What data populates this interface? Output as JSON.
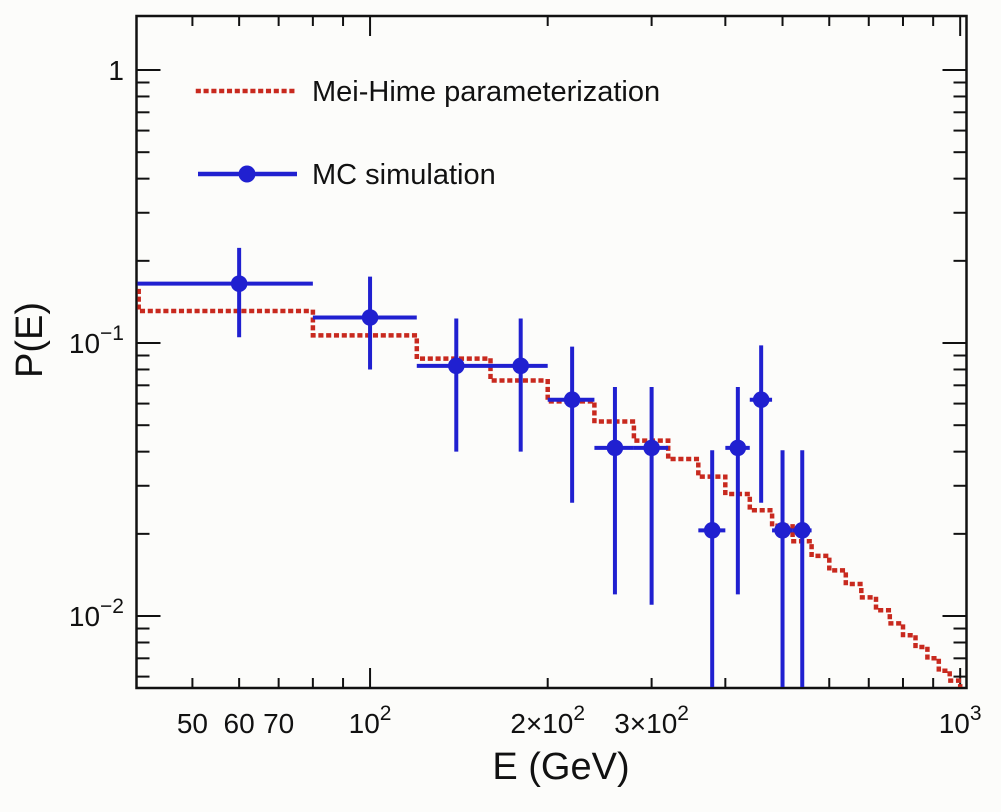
{
  "colors": {
    "background": "#fcfcfa",
    "frame": "#111111",
    "red": "#c8291e",
    "blue": "#2020d0"
  },
  "chart_data": {
    "type": "line",
    "title": "",
    "xlabel": "E (GeV)",
    "ylabel": "P(E)",
    "x_scale": "log",
    "y_scale": "log",
    "x_range": [
      40.2,
      1025
    ],
    "y_range": [
      0.00545,
      1.577
    ],
    "grid": false,
    "x_ticks": [
      {
        "value": 50,
        "label": "50"
      },
      {
        "value": 60,
        "label": "60"
      },
      {
        "value": 70,
        "label": "70"
      },
      {
        "value": 80
      },
      {
        "value": 90
      },
      {
        "value": 100,
        "label": "10",
        "sup": "2",
        "major": true
      },
      {
        "value": 200,
        "label": "2×10",
        "sup": "2"
      },
      {
        "value": 300,
        "label": "3×10",
        "sup": "2"
      },
      {
        "value": 400
      },
      {
        "value": 500
      },
      {
        "value": 600
      },
      {
        "value": 700
      },
      {
        "value": 800
      },
      {
        "value": 900
      },
      {
        "value": 1000,
        "label": "10",
        "sup": "3",
        "major": true
      }
    ],
    "y_ticks": [
      {
        "value": 1,
        "label": "1",
        "major": true
      },
      {
        "value": 0.9
      },
      {
        "value": 0.8
      },
      {
        "value": 0.7
      },
      {
        "value": 0.6
      },
      {
        "value": 0.5
      },
      {
        "value": 0.4
      },
      {
        "value": 0.3
      },
      {
        "value": 0.2
      },
      {
        "value": 0.1,
        "label": "10",
        "sup": "−1",
        "major": true
      },
      {
        "value": 0.09
      },
      {
        "value": 0.08
      },
      {
        "value": 0.07
      },
      {
        "value": 0.06
      },
      {
        "value": 0.05
      },
      {
        "value": 0.04
      },
      {
        "value": 0.03
      },
      {
        "value": 0.02
      },
      {
        "value": 0.01,
        "label": "10",
        "sup": "−2",
        "major": true
      },
      {
        "value": 0.009
      },
      {
        "value": 0.008
      },
      {
        "value": 0.007
      },
      {
        "value": 0.006
      }
    ],
    "series": [
      {
        "name": "Mei-Hime parameterization",
        "type": "step_histogram",
        "color": "#c8291e",
        "line_style": "dotted",
        "bin_edges_start": 40,
        "bin_width": 40,
        "left_edge_stub_value": 0.155,
        "values": [
          0.131,
          0.1066,
          0.0877,
          0.0729,
          0.0611,
          0.0516,
          0.0439,
          0.0376,
          0.0324,
          0.028,
          0.0244,
          0.0214,
          0.0188,
          0.0166,
          0.0147,
          0.0131,
          0.0117,
          0.0105,
          0.0094,
          0.0085,
          0.0077,
          0.007,
          0.0063,
          0.0058,
          0.0053
        ]
      },
      {
        "name": "MC simulation",
        "type": "scatter_errorbars",
        "color": "#2020d0",
        "marker": "filled-circle",
        "points": [
          {
            "E": 60,
            "P": 0.165,
            "P_lo": 0.105,
            "P_hi": 0.223,
            "E_lo": 40,
            "E_hi": 80
          },
          {
            "E": 100,
            "P": 0.124,
            "P_lo": 0.08,
            "P_hi": 0.175,
            "E_lo": 80,
            "E_hi": 120
          },
          {
            "E": 140,
            "P": 0.0825,
            "P_lo": 0.04,
            "P_hi": 0.123,
            "E_lo": 120,
            "E_hi": 160
          },
          {
            "E": 180,
            "P": 0.0825,
            "P_lo": 0.04,
            "P_hi": 0.123,
            "E_lo": 160,
            "E_hi": 200
          },
          {
            "E": 220,
            "P": 0.062,
            "P_lo": 0.026,
            "P_hi": 0.097,
            "E_lo": 200,
            "E_hi": 240
          },
          {
            "E": 260,
            "P": 0.0413,
            "P_lo": 0.012,
            "P_hi": 0.069,
            "E_lo": 240,
            "E_hi": 280
          },
          {
            "E": 300,
            "P": 0.0413,
            "P_lo": 0.011,
            "P_hi": 0.069,
            "E_lo": 280,
            "E_hi": 320
          },
          {
            "E": 380,
            "P": 0.0206,
            "P_lo": null,
            "P_hi": 0.0405,
            "E_lo": 360,
            "E_hi": 400
          },
          {
            "E": 420,
            "P": 0.0413,
            "P_lo": 0.012,
            "P_hi": 0.069,
            "E_lo": 400,
            "E_hi": 440
          },
          {
            "E": 460,
            "P": 0.062,
            "P_lo": 0.026,
            "P_hi": 0.098,
            "E_lo": 440,
            "E_hi": 480
          },
          {
            "E": 500,
            "P": 0.0206,
            "P_lo": null,
            "P_hi": 0.0405,
            "E_lo": 480,
            "E_hi": 520
          },
          {
            "E": 540,
            "P": 0.0206,
            "P_lo": null,
            "P_hi": 0.0405,
            "E_lo": 520,
            "E_hi": 560
          }
        ]
      }
    ],
    "legend": {
      "position": "top-left",
      "entries": [
        "Mei-Hime parameterization",
        "MC simulation"
      ]
    }
  }
}
